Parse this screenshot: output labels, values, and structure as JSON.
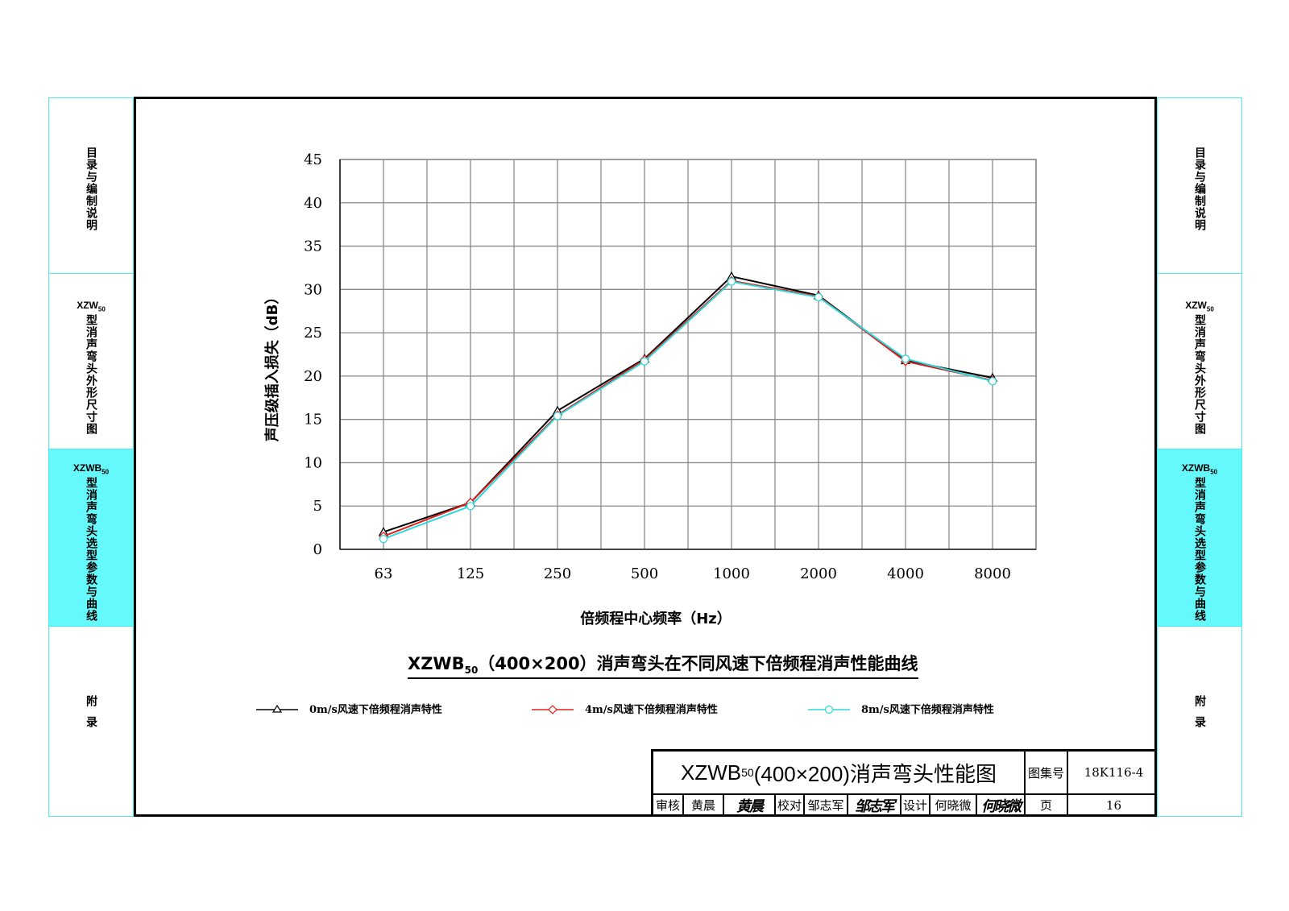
{
  "side_tabs": [
    {
      "code": "",
      "text": "目录与编制说明"
    },
    {
      "code": "XZW",
      "code_sub": "50",
      "text": "型消声弯头外形尺寸图"
    },
    {
      "code": "XZWB",
      "code_sub": "50",
      "text": "型消声弯头选型参数与曲线",
      "active": true
    },
    {
      "code": "",
      "text": "附录"
    }
  ],
  "chart_title": {
    "pre": "XZWB",
    "sub": "50",
    "post": "（400×200）消声弯头在不同风速下倍频程消声性能曲线"
  },
  "chart_data": {
    "type": "line",
    "xlabel": "倍频程中心频率（Hz）",
    "ylabel": "声压级插入损失（dB）",
    "categories": [
      "63",
      "125",
      "250",
      "500",
      "1000",
      "2000",
      "4000",
      "8000"
    ],
    "ylim": [
      0,
      45
    ],
    "yticks": [
      0,
      5,
      10,
      15,
      20,
      25,
      30,
      35,
      40,
      45
    ],
    "grid": true,
    "series": [
      {
        "name": "0m/s风速下倍频程消声特性",
        "color": "#000000",
        "marker": "triangle",
        "values": [
          2.0,
          5.4,
          16.0,
          22.0,
          31.5,
          29.3,
          21.8,
          19.8
        ]
      },
      {
        "name": "4m/s风速下倍频程消声特性",
        "color": "#e0201b",
        "marker": "diamond",
        "values": [
          1.5,
          5.4,
          15.5,
          21.9,
          31.0,
          29.2,
          21.7,
          19.5
        ]
      },
      {
        "name": "8m/s风速下倍频程消声特性",
        "color": "#2bd8dc",
        "marker": "circle",
        "values": [
          1.2,
          5.0,
          15.4,
          21.7,
          30.9,
          29.1,
          22.0,
          19.4
        ]
      }
    ]
  },
  "title_block": {
    "drawing_name_pre": "XZWB",
    "drawing_name_sub": "50",
    "drawing_name_post": "(400×200)消声弯头性能图",
    "atlas_label": "图集号",
    "atlas_no": "18K116-4",
    "review_label": "审核",
    "reviewer": "黄晨",
    "check_label": "校对",
    "checker": "邹志军",
    "design_label": "设计",
    "designer": "何晓微",
    "page_label": "页",
    "page_no": "16"
  }
}
